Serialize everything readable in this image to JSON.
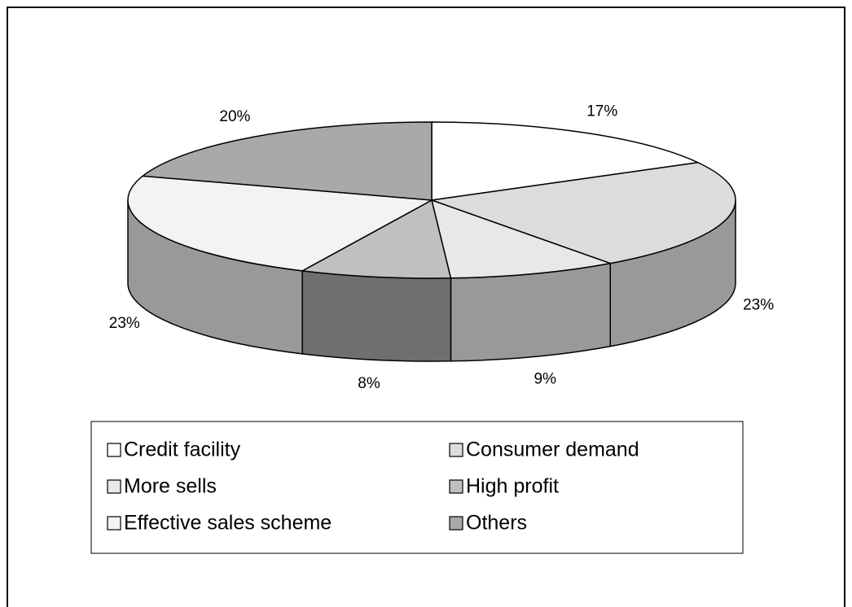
{
  "chart_data": {
    "type": "pie",
    "categories": [
      "Credit facility",
      "Consumer demand",
      "More sells",
      "High profit",
      "Effective sales scheme",
      "Others"
    ],
    "values": [
      17,
      23,
      9,
      8,
      23,
      20
    ],
    "value_labels": [
      "17%",
      "23%",
      "9%",
      "8%",
      "23%",
      "20%"
    ],
    "colors": [
      "#ffffff",
      "#dcdcdc",
      "#e8e8e8",
      "#c0c0c0",
      "#f3f3f3",
      "#a9a9a9"
    ],
    "side_colors": [
      "#999999",
      "#999999",
      "#999999",
      "#6f6f6f",
      "#999999",
      "#888888"
    ],
    "legend": "bottom"
  }
}
